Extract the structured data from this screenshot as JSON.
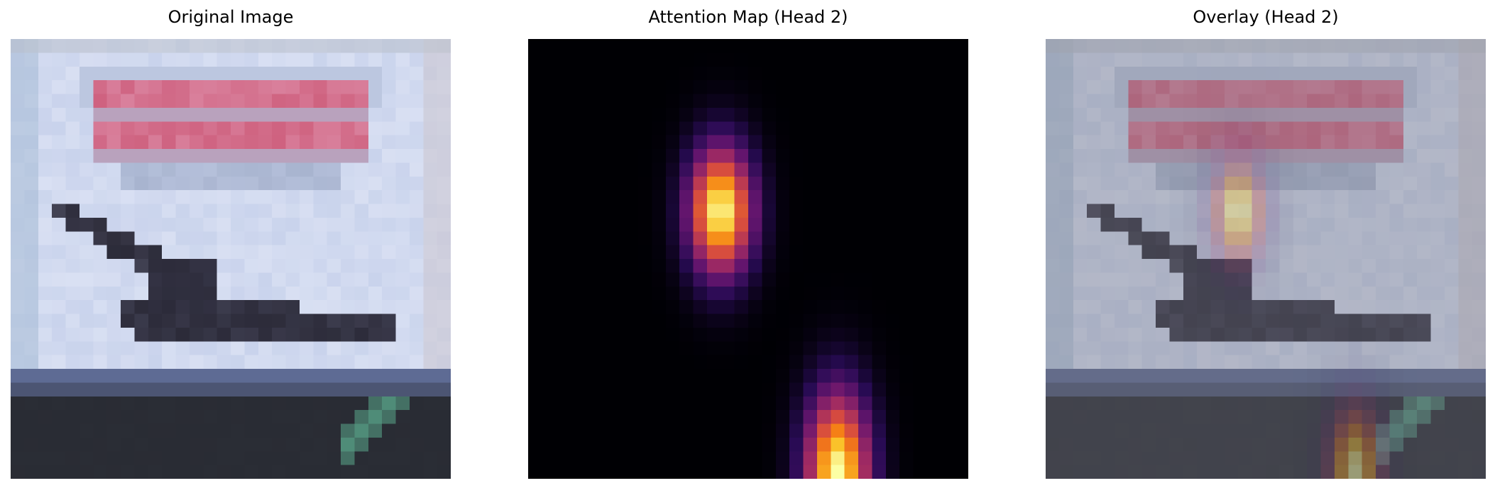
{
  "panels": [
    {
      "title": "Original Image"
    },
    {
      "title": "Attention Map (Head 2)"
    },
    {
      "title": "Overlay (Head 2)"
    }
  ],
  "colormap": "inferno",
  "attention_head": 2,
  "colors": {
    "sky": "#c9d3ec",
    "sky_light": "#e3e8f7",
    "banner_pink": "#d9809c",
    "banner_red": "#cc5a78",
    "banner_gray": "#a8b4cf",
    "plane_dark": "#2b2a38",
    "ground_blue": "#5e6b94",
    "ground_dark": "#2a2d35",
    "green_stripe": "#4f8c78",
    "attn_background": "#000004"
  }
}
